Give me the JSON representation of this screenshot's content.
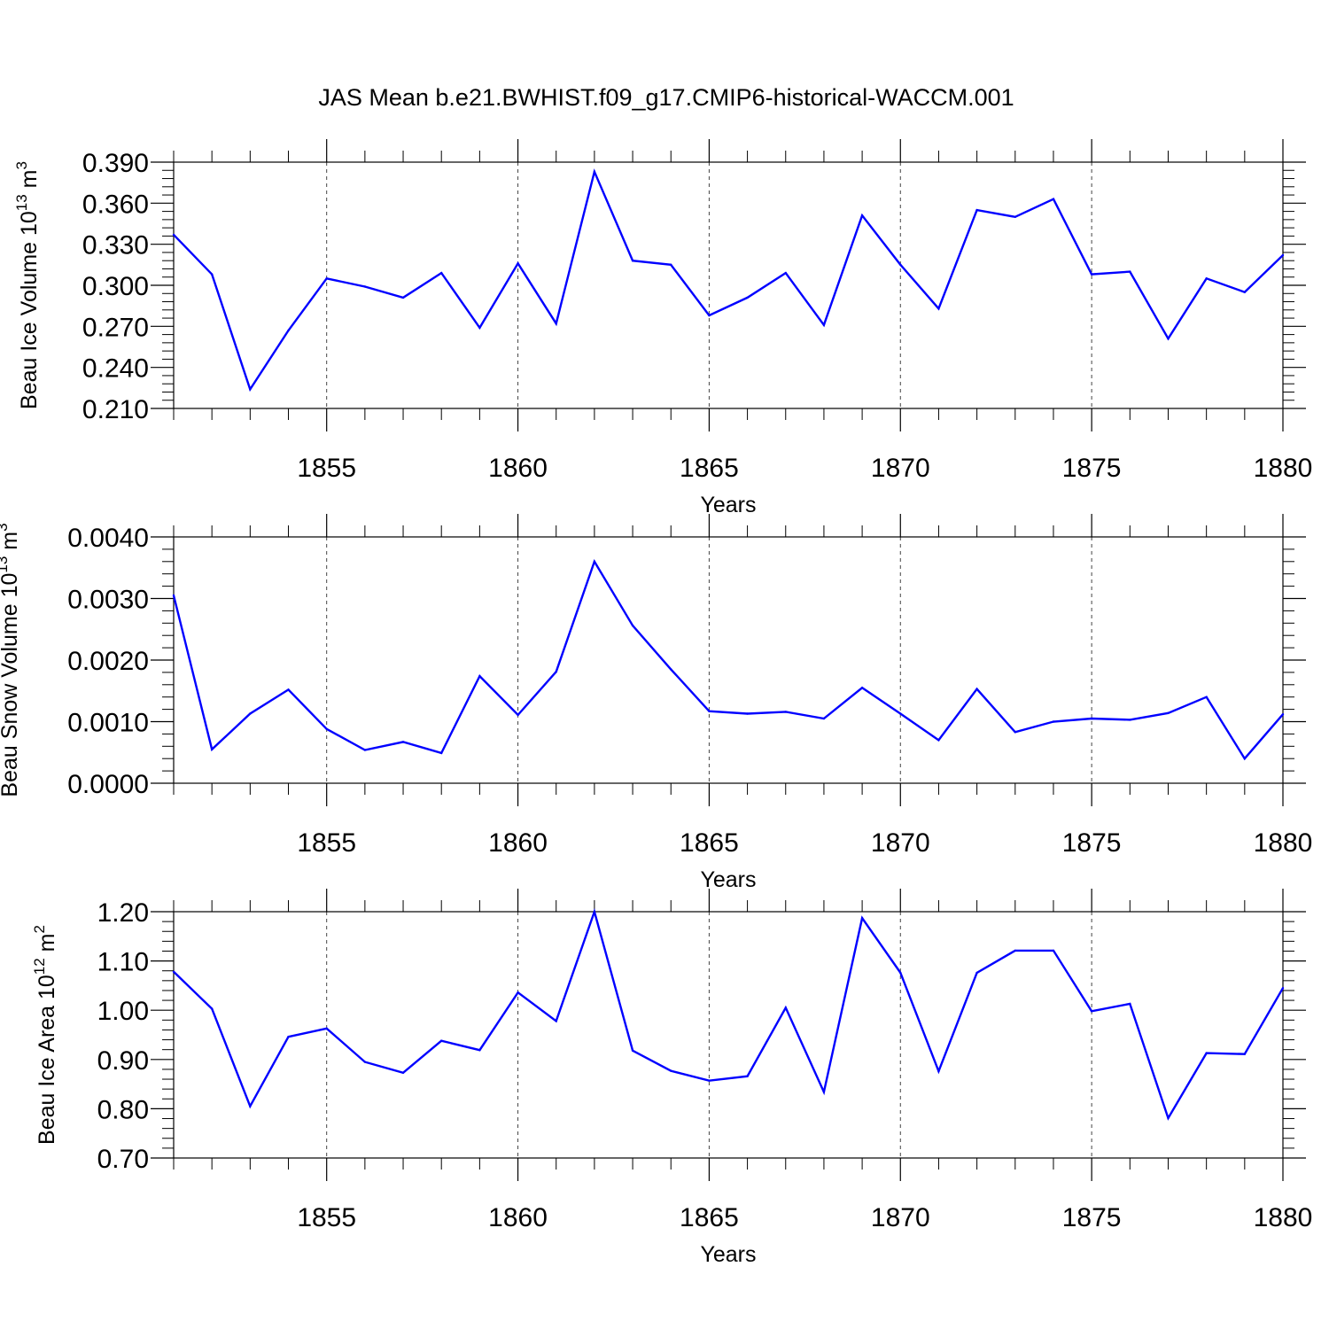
{
  "figure": {
    "title": "JAS Mean b.e21.BWHIST.f09_g17.CMIP6-historical-WACCM.001"
  },
  "chart_data": [
    {
      "type": "line",
      "ylabel_main": "Beau Ice Volume 10",
      "ylabel_exp": "13",
      "ylabel_unit": " m",
      "ylabel_unit_exp": "3",
      "xlabel": "Years",
      "xlim": [
        1851,
        1880
      ],
      "ylim": [
        0.21,
        0.39
      ],
      "y_ticks": [
        "0.390",
        "0.360",
        "0.330",
        "0.300",
        "0.270",
        "0.240",
        "0.210"
      ],
      "y_tick_values": [
        0.39,
        0.36,
        0.33,
        0.3,
        0.27,
        0.24,
        0.21
      ],
      "y_minor_step": 0.006,
      "x_ticks": [
        "1855",
        "1860",
        "1865",
        "1870",
        "1875",
        "1880"
      ],
      "x_tick_values": [
        1855,
        1860,
        1865,
        1870,
        1875,
        1880
      ],
      "grid": "dashed vertical at major x ticks",
      "color": "#0000ff",
      "x": [
        1851,
        1852,
        1853,
        1854,
        1855,
        1856,
        1857,
        1858,
        1859,
        1860,
        1861,
        1862,
        1863,
        1864,
        1865,
        1866,
        1867,
        1868,
        1869,
        1870,
        1871,
        1872,
        1873,
        1874,
        1875,
        1876,
        1877,
        1878,
        1879,
        1880
      ],
      "values": [
        0.337,
        0.308,
        0.224,
        0.267,
        0.305,
        0.299,
        0.291,
        0.309,
        0.269,
        0.316,
        0.272,
        0.383,
        0.318,
        0.315,
        0.278,
        0.291,
        0.309,
        0.271,
        0.351,
        0.315,
        0.283,
        0.355,
        0.35,
        0.363,
        0.308,
        0.31,
        0.261,
        0.305,
        0.295,
        0.322
      ]
    },
    {
      "type": "line",
      "ylabel_main": "Beau Snow Volume 10",
      "ylabel_exp": "13",
      "ylabel_unit": " m",
      "ylabel_unit_exp": "3",
      "xlabel": "Years",
      "xlim": [
        1851,
        1880
      ],
      "ylim": [
        0.0,
        0.004
      ],
      "y_ticks": [
        "0.0040",
        "0.0030",
        "0.0020",
        "0.0010",
        "0.0000"
      ],
      "y_tick_values": [
        0.004,
        0.003,
        0.002,
        0.001,
        0.0
      ],
      "y_minor_step": 0.0002,
      "x_ticks": [
        "1855",
        "1860",
        "1865",
        "1870",
        "1875",
        "1880"
      ],
      "x_tick_values": [
        1855,
        1860,
        1865,
        1870,
        1875,
        1880
      ],
      "grid": "dashed vertical at major x ticks",
      "color": "#0000ff",
      "x": [
        1851,
        1852,
        1853,
        1854,
        1855,
        1856,
        1857,
        1858,
        1859,
        1860,
        1861,
        1862,
        1863,
        1864,
        1865,
        1866,
        1867,
        1868,
        1869,
        1870,
        1871,
        1872,
        1873,
        1874,
        1875,
        1876,
        1877,
        1878,
        1879,
        1880
      ],
      "values": [
        0.00305,
        0.00055,
        0.00113,
        0.00152,
        0.00088,
        0.00054,
        0.00067,
        0.00049,
        0.00174,
        0.00111,
        0.00181,
        0.0036,
        0.00256,
        0.00185,
        0.00117,
        0.00113,
        0.00116,
        0.00105,
        0.00155,
        0.00113,
        0.0007,
        0.00153,
        0.00083,
        0.001,
        0.00105,
        0.00103,
        0.00114,
        0.0014,
        0.0004,
        0.00112
      ]
    },
    {
      "type": "line",
      "ylabel_main": "Beau Ice Area 10",
      "ylabel_exp": "12",
      "ylabel_unit": " m",
      "ylabel_unit_exp": "2",
      "xlabel": "Years",
      "xlim": [
        1851,
        1880
      ],
      "ylim": [
        0.7,
        1.2
      ],
      "y_ticks": [
        "1.20",
        "1.10",
        "1.00",
        "0.90",
        "0.80",
        "0.70"
      ],
      "y_tick_values": [
        1.2,
        1.1,
        1.0,
        0.9,
        0.8,
        0.7
      ],
      "y_minor_step": 0.02,
      "x_ticks": [
        "1855",
        "1860",
        "1865",
        "1870",
        "1875",
        "1880"
      ],
      "x_tick_values": [
        1855,
        1860,
        1865,
        1870,
        1875,
        1880
      ],
      "grid": "dashed vertical at major x ticks",
      "color": "#0000ff",
      "x": [
        1851,
        1852,
        1853,
        1854,
        1855,
        1856,
        1857,
        1858,
        1859,
        1860,
        1861,
        1862,
        1863,
        1864,
        1865,
        1866,
        1867,
        1868,
        1869,
        1870,
        1871,
        1872,
        1873,
        1874,
        1875,
        1876,
        1877,
        1878,
        1879,
        1880
      ],
      "values": [
        1.078,
        1.003,
        0.805,
        0.946,
        0.963,
        0.895,
        0.873,
        0.938,
        0.919,
        1.036,
        0.978,
        1.2,
        0.918,
        0.877,
        0.857,
        0.866,
        1.005,
        0.834,
        1.187,
        1.076,
        0.876,
        1.076,
        1.121,
        1.121,
        0.998,
        1.013,
        0.781,
        0.913,
        0.911,
        1.045
      ]
    }
  ]
}
